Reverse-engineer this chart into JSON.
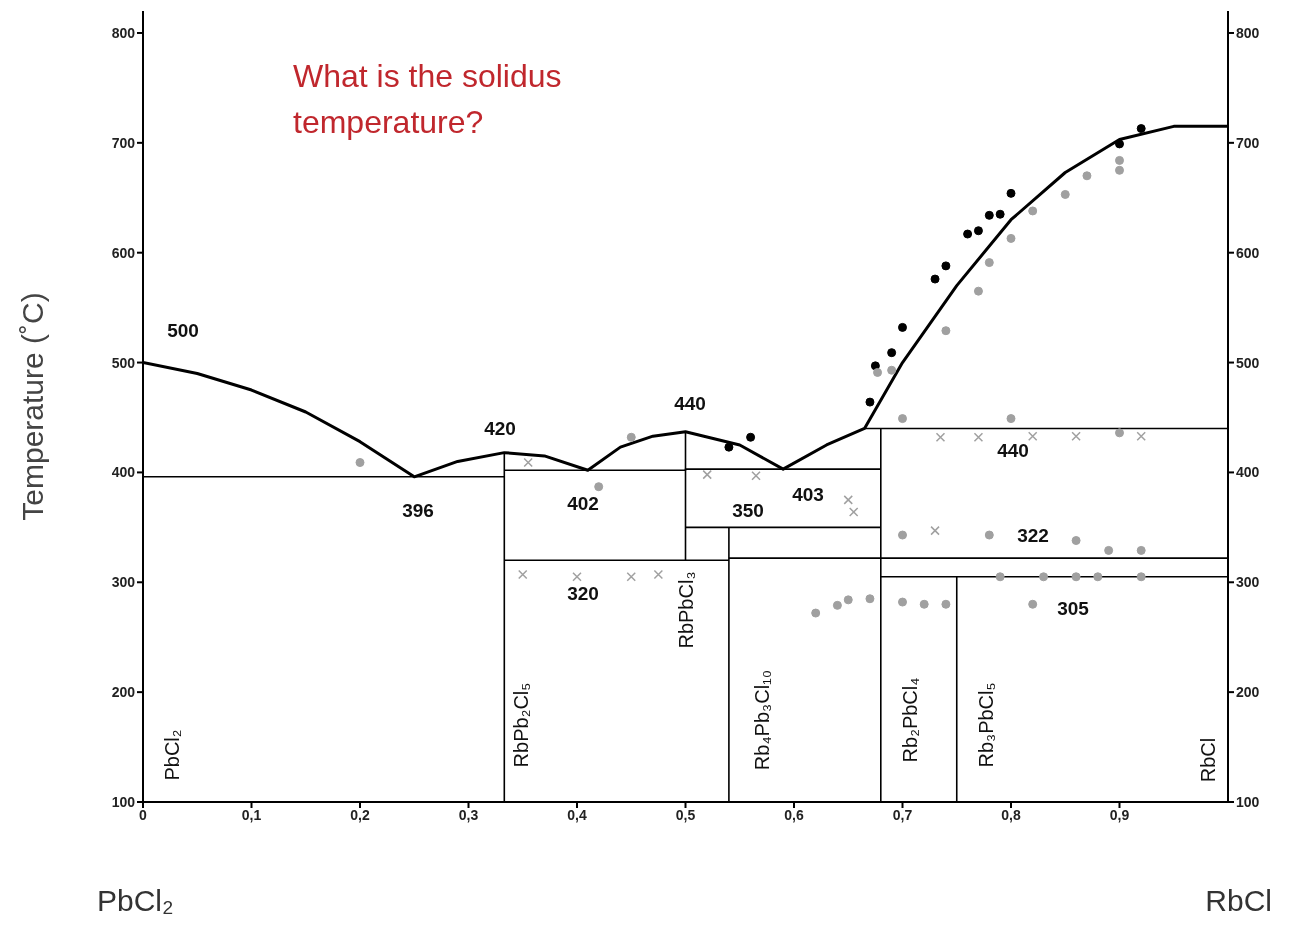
{
  "chart_data": {
    "type": "line",
    "title": "What is the solidus temperature?",
    "ylabel": "Temperature (˚C)",
    "xlim": [
      0,
      1
    ],
    "xticks": [
      0,
      {
        "value": 0.1,
        "label": "0,1"
      },
      {
        "value": 0.2,
        "label": "0,2"
      },
      {
        "value": 0.3,
        "label": "0,3"
      },
      {
        "value": 0.4,
        "label": "0,4"
      },
      {
        "value": 0.5,
        "label": "0,5"
      },
      {
        "value": 0.6,
        "label": "0,6"
      },
      {
        "value": 0.7,
        "label": "0,7"
      },
      {
        "value": 0.8,
        "label": "0,8"
      },
      {
        "value": 0.9,
        "label": "0,9"
      }
    ],
    "ylim": [
      100,
      820
    ],
    "yticks": [
      100,
      200,
      300,
      400,
      500,
      600,
      700,
      800
    ],
    "y2lim": [
      100,
      820
    ],
    "y2ticks": [
      100,
      200,
      300,
      400,
      500,
      600,
      700,
      800
    ],
    "grid": false,
    "legend": false,
    "line_style": "solid",
    "series": [
      {
        "color": "#000000",
        "x": [
          0,
          0.05,
          0.1,
          0.15,
          0.2,
          0.25,
          0.29,
          0.333,
          0.37,
          0.41,
          0.44,
          0.47,
          0.5,
          0.55,
          0.59,
          0.63,
          0.665,
          0.7,
          0.75,
          0.8,
          0.85,
          0.9,
          0.95,
          1
        ],
        "values": [
          500,
          490,
          475,
          455,
          428,
          396,
          410,
          418,
          415,
          402,
          423,
          433,
          437,
          425,
          403,
          425,
          440,
          500,
          570,
          630,
          673,
          703,
          715,
          715
        ]
      },
      {
        "type": "line",
        "color": "#000000",
        "x": [
          0,
          0.333
        ],
        "values": [
          396,
          396
        ]
      },
      {
        "type": "line",
        "color": "#000000",
        "x": [
          0.333,
          0.5,
          0.5,
          0.68
        ],
        "values": [
          402,
          402,
          403,
          403
        ]
      },
      {
        "type": "line",
        "color": "#000000",
        "x": [
          0.333,
          0.54
        ],
        "values": [
          320,
          320
        ]
      },
      {
        "type": "line",
        "color": "#000000",
        "x": [
          0.5,
          0.68
        ],
        "values": [
          350,
          350
        ]
      },
      {
        "type": "line",
        "color": "#000000",
        "x": [
          0.665,
          1
        ],
        "values": [
          440,
          440
        ]
      },
      {
        "type": "line",
        "color": "#000000",
        "x": [
          0.54,
          1
        ],
        "values": [
          322,
          322
        ]
      },
      {
        "type": "line",
        "color": "#000000",
        "x": [
          0.68,
          1
        ],
        "values": [
          305,
          305
        ]
      },
      {
        "type": "line",
        "color": "#000000",
        "x": [
          0.333,
          0.333
        ],
        "values": [
          100,
          418
        ]
      },
      {
        "type": "line",
        "color": "#000000",
        "x": [
          0.5,
          0.5
        ],
        "values": [
          320,
          437
        ]
      },
      {
        "type": "line",
        "color": "#000000",
        "x": [
          0.54,
          0.54
        ],
        "values": [
          100,
          350
        ]
      },
      {
        "type": "line",
        "color": "#000000",
        "x": [
          0.68,
          0.68
        ],
        "values": [
          100,
          440
        ]
      },
      {
        "type": "line",
        "color": "#000000",
        "x": [
          0.75,
          0.75
        ],
        "values": [
          100,
          305
        ]
      },
      {
        "type": "scatter",
        "marker": "circle",
        "color": "#000000",
        "x": [
          0.54,
          0.56,
          0.67,
          0.675,
          0.69,
          0.7,
          0.73,
          0.74,
          0.76,
          0.77,
          0.78,
          0.79,
          0.8,
          0.9,
          0.92
        ],
        "values": [
          423,
          432,
          464,
          497,
          509,
          532,
          576,
          588,
          617,
          620,
          634,
          635,
          654,
          699,
          713
        ]
      },
      {
        "type": "scatter",
        "marker": "circle",
        "color": "#a0a0a0",
        "x": [
          0.2,
          0.42,
          0.45,
          0.677,
          0.69,
          0.74,
          0.77,
          0.78,
          0.8,
          0.82,
          0.85,
          0.87,
          0.9,
          0.9,
          0.62,
          0.64,
          0.65,
          0.67,
          0.7,
          0.72,
          0.74,
          0.82,
          0.7,
          0.78,
          0.86,
          0.89,
          0.92,
          0.79,
          0.83,
          0.86,
          0.88,
          0.92,
          0.7,
          0.8,
          0.9
        ],
        "values": [
          409,
          387,
          432,
          491,
          493,
          529,
          565,
          591,
          613,
          638,
          653,
          670,
          684,
          675,
          272,
          279,
          284,
          285,
          282,
          280,
          280,
          280,
          343,
          343,
          338,
          329,
          329,
          305,
          305,
          305,
          305,
          305,
          449,
          449,
          436
        ]
      },
      {
        "type": "scatter",
        "marker": "cross",
        "color": "#a0a0a0",
        "x": [
          0.355,
          0.35,
          0.4,
          0.45,
          0.475,
          0.52,
          0.565,
          0.655,
          0.65,
          0.73,
          0.735,
          0.77,
          0.82,
          0.86,
          0.92
        ],
        "values": [
          409,
          307,
          305,
          305,
          307,
          398,
          397,
          364,
          375,
          347,
          432,
          432,
          433,
          433,
          433
        ]
      }
    ],
    "annotations": [
      "500",
      "396",
      "420",
      "402",
      "440",
      "320",
      "350",
      "403",
      "440",
      "322",
      "305",
      "PbCl₂",
      "RbPb₂Cl₅",
      "RbPbCl₃",
      "Rb₄Pb₃Cl₁₀",
      "Rb₂PbCl₄",
      "Rb₃PbCl₅",
      "RbCl",
      "PbCl₂",
      "RbCl"
    ]
  }
}
